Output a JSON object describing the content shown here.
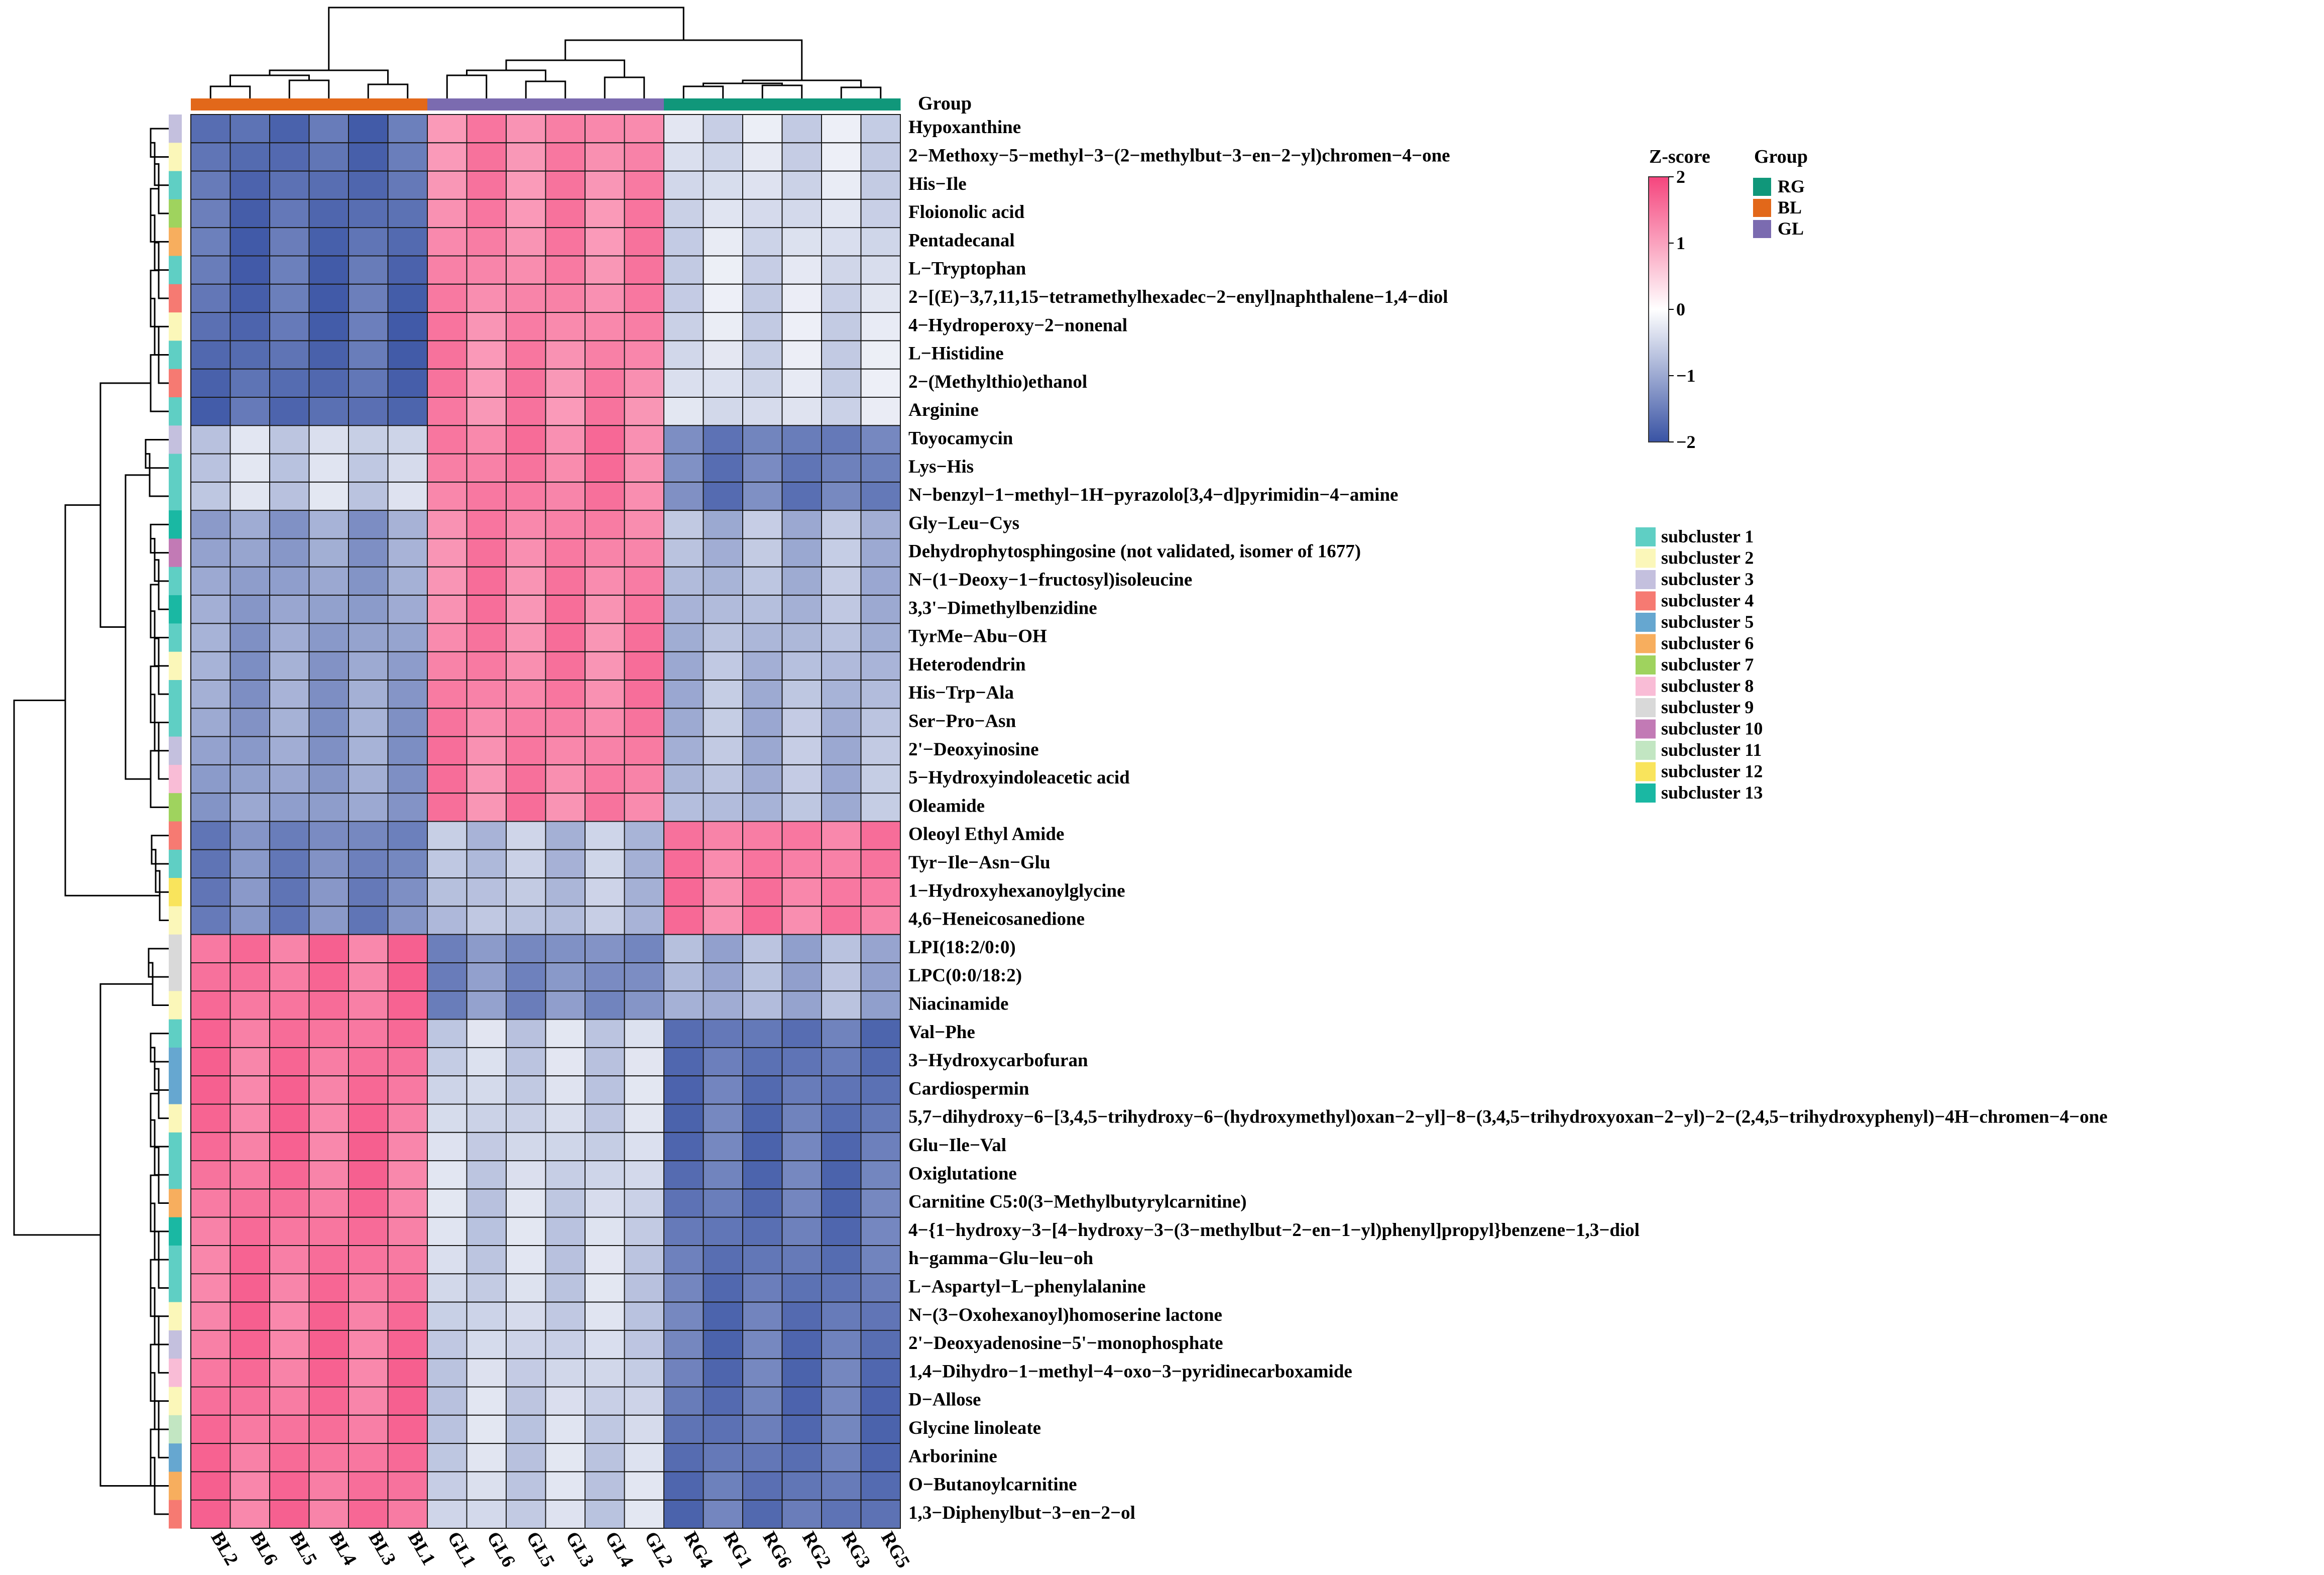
{
  "chart_data": {
    "type": "heatmap",
    "title": "",
    "group_label": "Group",
    "columns": [
      "BL2",
      "BL6",
      "BL5",
      "BL4",
      "BL3",
      "BL1",
      "GL1",
      "GL6",
      "GL5",
      "GL3",
      "GL4",
      "GL2",
      "RG4",
      "RG1",
      "RG6",
      "RG2",
      "RG3",
      "RG5"
    ],
    "column_groups": [
      "BL",
      "BL",
      "BL",
      "BL",
      "BL",
      "BL",
      "GL",
      "GL",
      "GL",
      "GL",
      "GL",
      "GL",
      "RG",
      "RG",
      "RG",
      "RG",
      "RG",
      "RG"
    ],
    "groups": [
      {
        "name": "RG",
        "color": "#10977a"
      },
      {
        "name": "BL",
        "color": "#e2681a"
      },
      {
        "name": "GL",
        "color": "#7b6bb0"
      }
    ],
    "rows": [
      "Hypoxanthine",
      "2−Methoxy−5−methyl−3−(2−methylbut−3−en−2−yl)chromen−4−one",
      "His−Ile",
      "Floionolic acid",
      "Pentadecanal",
      "L−Tryptophan",
      "2−[(E)−3,7,11,15−tetramethylhexadec−2−enyl]naphthalene−1,4−diol",
      "4−Hydroperoxy−2−nonenal",
      "L−Histidine",
      "2−(Methylthio)ethanol",
      "Arginine",
      "Toyocamycin",
      "Lys−His",
      "N−benzyl−1−methyl−1H−pyrazolo[3,4−d]pyrimidin−4−amine",
      "Gly−Leu−Cys",
      "Dehydrophytosphingosine (not validated, isomer of 1677)",
      "N−(1−Deoxy−1−fructosyl)isoleucine",
      "3,3'−Dimethylbenzidine",
      "TyrMe−Abu−OH",
      "Heterodendrin",
      "His−Trp−Ala",
      "Ser−Pro−Asn",
      "2'−Deoxyinosine",
      "5−Hydroxyindoleacetic acid",
      "Oleamide",
      "Oleoyl Ethyl Amide",
      "Tyr−Ile−Asn−Glu",
      "1−Hydroxyhexanoylglycine",
      "4,6−Heneicosanedione",
      "LPI(18:2/0:0)",
      "LPC(0:0/18:2)",
      "Niacinamide",
      "Val−Phe",
      "3−Hydroxycarbofuran",
      "Cardiospermin",
      "5,7−dihydroxy−6−[3,4,5−trihydroxy−6−(hydroxymethyl)oxan−2−yl]−8−(3,4,5−trihydroxyoxan−2−yl)−2−(2,4,5−trihydroxyphenyl)−4H−chromen−4−one",
      "Glu−Ile−Val",
      "Oxiglutatione",
      "Carnitine C5:0(3−Methylbutyrylcarnitine)",
      "4−{1−hydroxy−3−[4−hydroxy−3−(3−methylbut−2−en−1−yl)phenyl]propyl}benzene−1,3−diol",
      "h−gamma−Glu−leu−oh",
      "L−Aspartyl−L−phenylalanine",
      "N−(3−Oxohexanoyl)homoserine lactone",
      "2'−Deoxyadenosine−5'−monophosphate",
      "1,4−Dihydro−1−methyl−4−oxo−3−pyridinecarboxamide",
      "D−Allose",
      "Glycine linoleate",
      "Arborinine",
      "O−Butanoylcarnitine",
      "1,3−Diphenylbut−3−en−2−ol"
    ],
    "row_subclusters": [
      3,
      2,
      1,
      7,
      6,
      1,
      4,
      2,
      1,
      4,
      1,
      3,
      1,
      1,
      13,
      10,
      1,
      13,
      1,
      2,
      1,
      1,
      3,
      8,
      7,
      4,
      1,
      12,
      2,
      9,
      9,
      2,
      1,
      5,
      5,
      2,
      1,
      1,
      6,
      13,
      1,
      1,
      2,
      3,
      8,
      2,
      11,
      5,
      6,
      4
    ],
    "block_means": [
      [
        -1.7,
        1.3,
        -0.4
      ],
      [
        -0.5,
        1.4,
        -1.5
      ],
      [
        -1.1,
        1.35,
        -0.8
      ],
      [
        -1.4,
        -0.7,
        1.4
      ],
      [
        1.5,
        -1.3,
        -0.9
      ],
      [
        1.5,
        -0.5,
        -1.6
      ]
    ],
    "block_row_ranges": [
      [
        0,
        10
      ],
      [
        11,
        13
      ],
      [
        14,
        24
      ],
      [
        25,
        28
      ],
      [
        29,
        31
      ],
      [
        32,
        49
      ]
    ],
    "colorbar": {
      "title": "Z-score",
      "min": -2,
      "max": 2,
      "ticks": [
        "2",
        "1",
        "0",
        "−1",
        "−2"
      ],
      "colors": [
        "#3953a4",
        "#ffffff",
        "#f5457d"
      ]
    },
    "subcluster_legend": [
      {
        "label": "subcluster 1",
        "color": "#5fcfc4"
      },
      {
        "label": "subcluster 2",
        "color": "#fbf7b9"
      },
      {
        "label": "subcluster 3",
        "color": "#c4c0de"
      },
      {
        "label": "subcluster 4",
        "color": "#f67a72"
      },
      {
        "label": "subcluster 5",
        "color": "#66a7d0"
      },
      {
        "label": "subcluster 6",
        "color": "#f7ae5e"
      },
      {
        "label": "subcluster 7",
        "color": "#9fd35e"
      },
      {
        "label": "subcluster 8",
        "color": "#f9bcd6"
      },
      {
        "label": "subcluster 9",
        "color": "#d9d9d9"
      },
      {
        "label": "subcluster 10",
        "color": "#c27ab5"
      },
      {
        "label": "subcluster 11",
        "color": "#c2e6c2"
      },
      {
        "label": "subcluster 12",
        "color": "#f9e45c"
      },
      {
        "label": "subcluster 13",
        "color": "#1ab8a3"
      }
    ]
  }
}
